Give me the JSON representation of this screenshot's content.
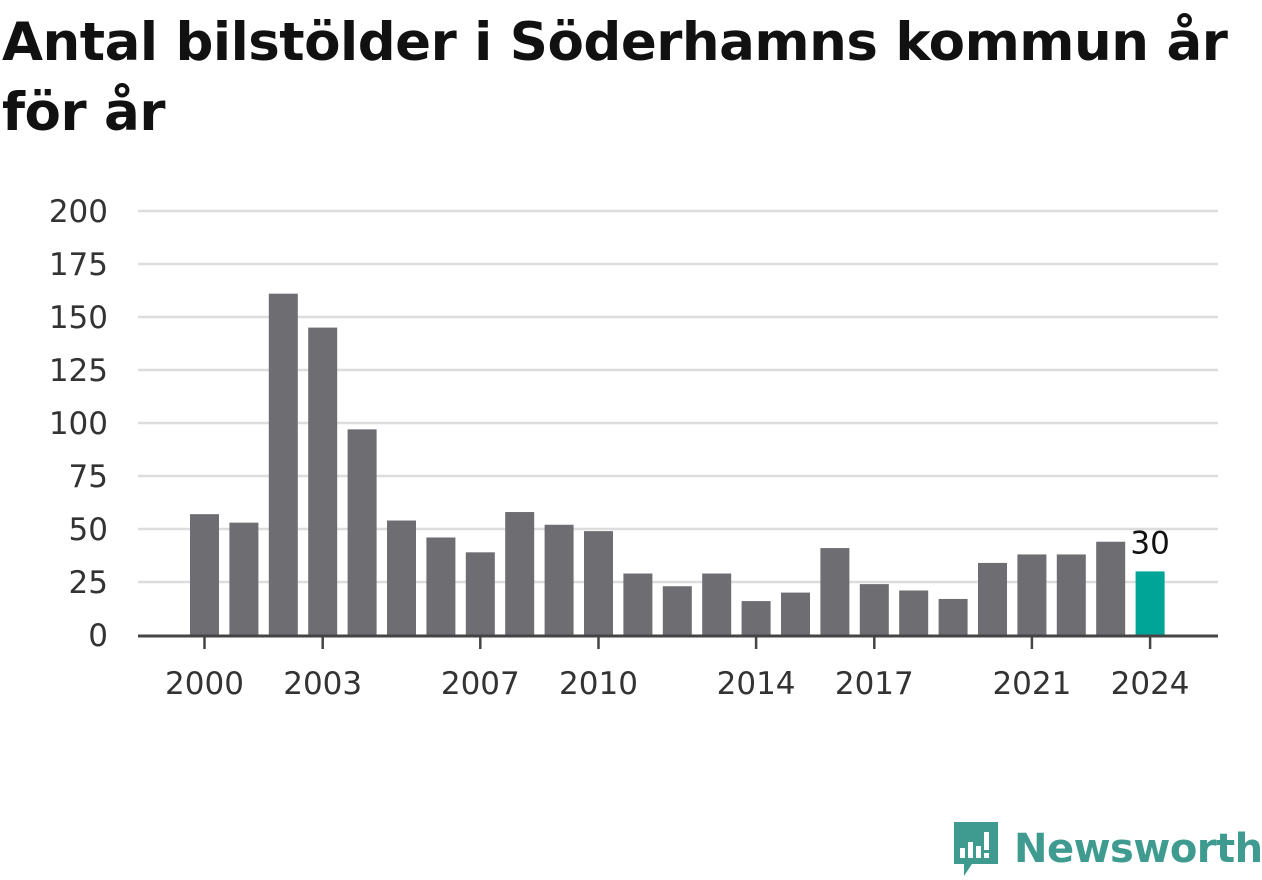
{
  "chart_data": {
    "type": "bar",
    "title": "Antal bilstölder i Söderhamns kommun år för år",
    "xlabel": "",
    "ylabel": "",
    "ylim": [
      0,
      200
    ],
    "yticks": [
      0,
      25,
      50,
      75,
      100,
      125,
      150,
      175,
      200
    ],
    "categories": [
      "2000",
      "2001",
      "2002",
      "2003",
      "2004",
      "2005",
      "2006",
      "2007",
      "2008",
      "2009",
      "2010",
      "2011",
      "2012",
      "2013",
      "2014",
      "2015",
      "2016",
      "2017",
      "2018",
      "2019",
      "2020",
      "2021",
      "2022",
      "2023",
      "2024"
    ],
    "xtick_labels": [
      "2000",
      "2003",
      "2007",
      "2010",
      "2014",
      "2017",
      "2021",
      "2024"
    ],
    "values": [
      57,
      53,
      161,
      145,
      97,
      54,
      46,
      39,
      58,
      52,
      49,
      29,
      23,
      29,
      16,
      20,
      41,
      24,
      21,
      17,
      34,
      38,
      38,
      44,
      30
    ],
    "highlight": {
      "category": "2024",
      "label": "30"
    },
    "grid": true,
    "colors": {
      "bar": "#6e6d72",
      "highlight": "#00a597",
      "grid": "#dddddd",
      "axis": "#444444"
    }
  },
  "logo": {
    "text": "Newsworthy",
    "icon": "newsworthy-bar-chart-icon",
    "color": "#3f9b8f"
  }
}
